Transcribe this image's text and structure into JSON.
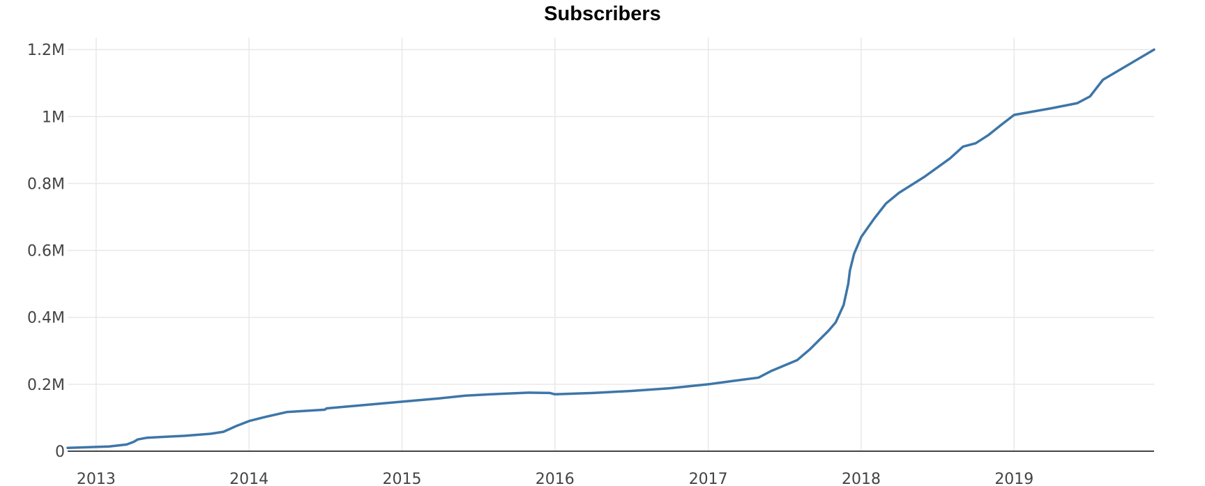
{
  "chart_data": {
    "type": "line",
    "title": "Subscribers",
    "xlabel": "",
    "ylabel": "",
    "x_ticks": [
      "2013",
      "2014",
      "2015",
      "2016",
      "2017",
      "2018",
      "2019"
    ],
    "y_ticks": [
      {
        "value": 0,
        "label": "0"
      },
      {
        "value": 200000,
        "label": "0.2M"
      },
      {
        "value": 400000,
        "label": "0.4M"
      },
      {
        "value": 600000,
        "label": "0.6M"
      },
      {
        "value": 800000,
        "label": "0.8M"
      },
      {
        "value": 1000000,
        "label": "1M"
      },
      {
        "value": 1200000,
        "label": "1.2M"
      }
    ],
    "xlim": [
      "2012-10-25",
      "2019-12-01"
    ],
    "ylim": [
      0,
      1265000
    ],
    "grid": true,
    "line_color": "#3d76a8",
    "series": [
      {
        "x": [
          "2012-10-25",
          "2013-02-01",
          "2013-03-15",
          "2013-04-01",
          "2013-04-10",
          "2013-05-01",
          "2013-06-01",
          "2013-08-01",
          "2013-10-01",
          "2013-11-01",
          "2013-12-01",
          "2014-01-01",
          "2014-02-01",
          "2014-04-01",
          "2014-07-01",
          "2014-07-05",
          "2015-01-01",
          "2015-04-01",
          "2015-06-01",
          "2015-08-01",
          "2015-11-01",
          "2015-12-20",
          "2016-01-01",
          "2016-04-01",
          "2016-07-01",
          "2016-10-01",
          "2017-01-01",
          "2017-03-01",
          "2017-05-01",
          "2017-06-01",
          "2017-08-01",
          "2017-09-01",
          "2017-10-15",
          "2017-11-01",
          "2017-11-20",
          "2017-12-01",
          "2017-12-05",
          "2017-12-15",
          "2018-01-01",
          "2018-02-01",
          "2018-03-01",
          "2018-04-01",
          "2018-06-01",
          "2018-08-01",
          "2018-09-01",
          "2018-10-01",
          "2018-11-01",
          "2018-12-01",
          "2019-01-01",
          "2019-04-01",
          "2019-06-01",
          "2019-07-01",
          "2019-08-01",
          "2019-12-01"
        ],
        "y": [
          10000,
          14000,
          20000,
          28000,
          35000,
          40000,
          42000,
          46000,
          52000,
          58000,
          75000,
          90000,
          100000,
          117000,
          124000,
          128000,
          148000,
          158000,
          166000,
          170000,
          175000,
          174000,
          170000,
          174000,
          180000,
          188000,
          200000,
          210000,
          220000,
          240000,
          272000,
          305000,
          360000,
          385000,
          437000,
          500000,
          540000,
          590000,
          640000,
          695000,
          740000,
          772000,
          820000,
          875000,
          910000,
          920000,
          945000,
          975000,
          1005000,
          1025000,
          1040000,
          1060000,
          1110000,
          1200000
        ]
      }
    ]
  }
}
